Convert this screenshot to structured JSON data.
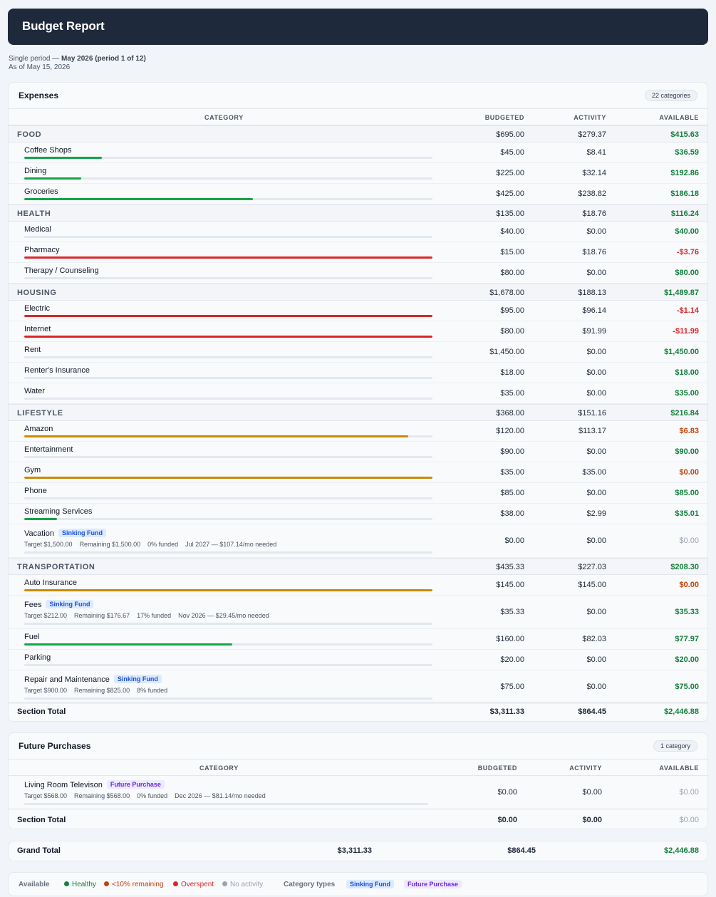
{
  "header": {
    "title": "Budget Report"
  },
  "period": {
    "prefix": "Single period — ",
    "label": "May 2026 (period 1 of 12)",
    "as_of": "As of May 15, 2026"
  },
  "colors": {
    "green": "#16a34a",
    "red": "#dc2626",
    "orange": "#ca8a04",
    "track": "#e2e8ee"
  },
  "columns": {
    "category": "CATEGORY",
    "budgeted": "BUDGETED",
    "activity": "ACTIVITY",
    "available": "AVAILABLE"
  },
  "expenses": {
    "title": "Expenses",
    "count": "22 categories",
    "groups": [
      {
        "name": "FOOD",
        "budgeted": "$695.00",
        "activity": "$279.37",
        "available": "$415.63",
        "status": "healthy",
        "items": [
          {
            "name": "Coffee Shops",
            "budgeted": "$45.00",
            "activity": "$8.41",
            "available": "$36.59",
            "status": "healthy",
            "progress": 0.19,
            "bar": "green"
          },
          {
            "name": "Dining",
            "budgeted": "$225.00",
            "activity": "$32.14",
            "available": "$192.86",
            "status": "healthy",
            "progress": 0.14,
            "bar": "green"
          },
          {
            "name": "Groceries",
            "budgeted": "$425.00",
            "activity": "$238.82",
            "available": "$186.18",
            "status": "healthy",
            "progress": 0.56,
            "bar": "green"
          }
        ]
      },
      {
        "name": "HEALTH",
        "budgeted": "$135.00",
        "activity": "$18.76",
        "available": "$116.24",
        "status": "healthy",
        "items": [
          {
            "name": "Medical",
            "budgeted": "$40.00",
            "activity": "$0.00",
            "available": "$40.00",
            "status": "healthy",
            "progress": 0,
            "bar": "green"
          },
          {
            "name": "Pharmacy",
            "budgeted": "$15.00",
            "activity": "$18.76",
            "available": "-$3.76",
            "status": "overspent",
            "progress": 1,
            "bar": "red"
          },
          {
            "name": "Therapy / Counseling",
            "budgeted": "$80.00",
            "activity": "$0.00",
            "available": "$80.00",
            "status": "healthy",
            "progress": 0,
            "bar": "green"
          }
        ]
      },
      {
        "name": "HOUSING",
        "budgeted": "$1,678.00",
        "activity": "$188.13",
        "available": "$1,489.87",
        "status": "healthy",
        "items": [
          {
            "name": "Electric",
            "budgeted": "$95.00",
            "activity": "$96.14",
            "available": "-$1.14",
            "status": "overspent",
            "progress": 1,
            "bar": "red"
          },
          {
            "name": "Internet",
            "budgeted": "$80.00",
            "activity": "$91.99",
            "available": "-$11.99",
            "status": "overspent",
            "progress": 1,
            "bar": "red"
          },
          {
            "name": "Rent",
            "budgeted": "$1,450.00",
            "activity": "$0.00",
            "available": "$1,450.00",
            "status": "healthy",
            "progress": 0,
            "bar": "green"
          },
          {
            "name": "Renter's Insurance",
            "budgeted": "$18.00",
            "activity": "$0.00",
            "available": "$18.00",
            "status": "healthy",
            "progress": 0,
            "bar": "green"
          },
          {
            "name": "Water",
            "budgeted": "$35.00",
            "activity": "$0.00",
            "available": "$35.00",
            "status": "healthy",
            "progress": 0,
            "bar": "green"
          }
        ]
      },
      {
        "name": "LIFESTYLE",
        "budgeted": "$368.00",
        "activity": "$151.16",
        "available": "$216.84",
        "status": "healthy",
        "items": [
          {
            "name": "Amazon",
            "budgeted": "$120.00",
            "activity": "$113.17",
            "available": "$6.83",
            "status": "low",
            "progress": 0.94,
            "bar": "orange"
          },
          {
            "name": "Entertainment",
            "budgeted": "$90.00",
            "activity": "$0.00",
            "available": "$90.00",
            "status": "healthy",
            "progress": 0,
            "bar": "green"
          },
          {
            "name": "Gym",
            "budgeted": "$35.00",
            "activity": "$35.00",
            "available": "$0.00",
            "status": "low",
            "progress": 1,
            "bar": "orange"
          },
          {
            "name": "Phone",
            "budgeted": "$85.00",
            "activity": "$0.00",
            "available": "$85.00",
            "status": "healthy",
            "progress": 0,
            "bar": "green"
          },
          {
            "name": "Streaming Services",
            "budgeted": "$38.00",
            "activity": "$2.99",
            "available": "$35.01",
            "status": "healthy",
            "progress": 0.08,
            "bar": "green"
          },
          {
            "name": "Vacation",
            "tag": "Sinking Fund",
            "tag_type": "sink",
            "budgeted": "$0.00",
            "activity": "$0.00",
            "available": "$0.00",
            "status": "none",
            "progress": 0,
            "bar": "green",
            "meta": [
              "Target $1,500.00",
              "Remaining $1,500.00",
              "0% funded",
              "Jul 2027 — $107.14/mo needed"
            ]
          }
        ]
      },
      {
        "name": "TRANSPORTATION",
        "budgeted": "$435.33",
        "activity": "$227.03",
        "available": "$208.30",
        "status": "healthy",
        "items": [
          {
            "name": "Auto Insurance",
            "budgeted": "$145.00",
            "activity": "$145.00",
            "available": "$0.00",
            "status": "low",
            "progress": 1,
            "bar": "orange"
          },
          {
            "name": "Fees",
            "tag": "Sinking Fund",
            "tag_type": "sink",
            "budgeted": "$35.33",
            "activity": "$0.00",
            "available": "$35.33",
            "status": "healthy",
            "progress": 0,
            "bar": "green",
            "meta": [
              "Target $212.00",
              "Remaining $176.67",
              "17% funded",
              "Nov 2026 — $29.45/mo needed"
            ]
          },
          {
            "name": "Fuel",
            "budgeted": "$160.00",
            "activity": "$82.03",
            "available": "$77.97",
            "status": "healthy",
            "progress": 0.51,
            "bar": "green"
          },
          {
            "name": "Parking",
            "budgeted": "$20.00",
            "activity": "$0.00",
            "available": "$20.00",
            "status": "healthy",
            "progress": 0,
            "bar": "green"
          },
          {
            "name": "Repair and Maintenance",
            "tag": "Sinking Fund",
            "tag_type": "sink",
            "budgeted": "$75.00",
            "activity": "$0.00",
            "available": "$75.00",
            "status": "healthy",
            "progress": 0,
            "bar": "green",
            "meta": [
              "Target $900.00",
              "Remaining $825.00",
              "8% funded"
            ]
          }
        ]
      }
    ],
    "total": {
      "label": "Section Total",
      "budgeted": "$3,311.33",
      "activity": "$864.45",
      "available": "$2,446.88"
    }
  },
  "future": {
    "title": "Future Purchases",
    "count": "1 category",
    "items": [
      {
        "name": "Living Room Televison",
        "tag": "Future Purchase",
        "tag_type": "fut",
        "budgeted": "$0.00",
        "activity": "$0.00",
        "available": "$0.00",
        "status": "none",
        "meta": [
          "Target $568.00",
          "Remaining $568.00",
          "0% funded",
          "Dec 2026 — $81.14/mo needed"
        ]
      }
    ],
    "total": {
      "label": "Section Total",
      "budgeted": "$0.00",
      "activity": "$0.00",
      "available": "$0.00"
    }
  },
  "grand_total": {
    "label": "Grand Total",
    "budgeted": "$3,311.33",
    "activity": "$864.45",
    "available": "$2,446.88"
  },
  "legend": {
    "available_label": "Available",
    "healthy": "Healthy",
    "low": "<10% remaining",
    "overspent": "Overspent",
    "none": "No activity",
    "types_label": "Category types",
    "sinking": "Sinking Fund",
    "future": "Future Purchase"
  }
}
